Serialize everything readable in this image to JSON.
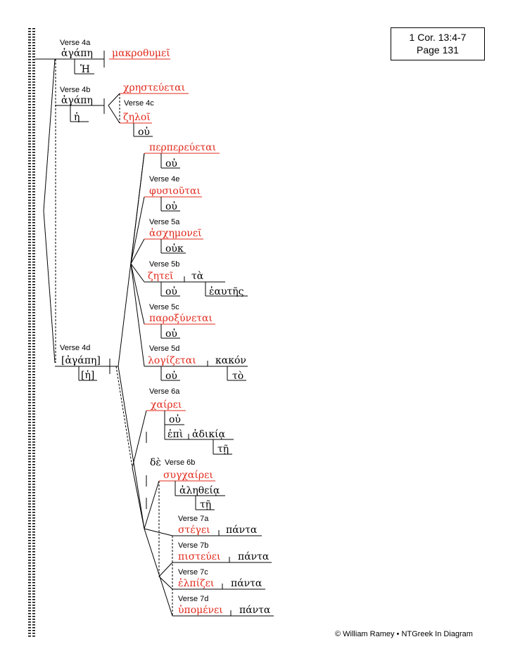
{
  "reference": {
    "line1": "1 Cor. 13:4-7",
    "line2": "Page 131"
  },
  "copyright": "© William Ramey • NTGreek In Diagram",
  "verses": {
    "v4a": "Verse 4a",
    "v4b": "Verse 4b",
    "v4c": "Verse 4c",
    "v4d": "Verse 4d",
    "v4e": "Verse 4e",
    "v5a": "Verse 5a",
    "v5b": "Verse 5b",
    "v5c": "Verse 5c",
    "v5d": "Verse 5d",
    "v6a": "Verse 6a",
    "v6b": "Verse 6b",
    "v7a": "Verse 7a",
    "v7b": "Verse 7b",
    "v7c": "Verse 7c",
    "v7d": "Verse 7d"
  },
  "words": {
    "agape1": "ἀγάπη",
    "makrothumei": "μακροθυμεῖ",
    "he1": "Ἡ",
    "agape2": "ἀγάπη",
    "he2": "ἡ",
    "chresteuetai": "χρηστεύεται",
    "zeloi": "ζηλοῖ",
    "ou1": "οὐ",
    "perpereuetai": "περπερεύεται",
    "ou2": "οὐ",
    "phusioutai": "φυσιοῦται",
    "ou3": "οὐ",
    "aschemonei": "ἀσχημονεῖ",
    "ouk": "οὐκ",
    "zetei": "ζητεῖ",
    "ta": "τὰ",
    "ou4": "οὐ",
    "heautes": "ἑαυτῆς",
    "paroxunetai": "παροξύνεται",
    "ou5": "οὐ",
    "logizetai": "λογίζεται",
    "kakon": "κακόν",
    "ou6": "οὐ",
    "to": "τὸ",
    "agape3": "[ἀγάπη]",
    "he3": "[ἡ]",
    "chairei": "χαίρει",
    "ou7": "οὐ",
    "epi": "ἐπὶ",
    "adikia": "ἀδικίᾳ",
    "te1": "τῇ",
    "de": "δὲ",
    "sugchairei": "συγχαίρει",
    "aletheia": "ἀληθείᾳ",
    "te2": "τῇ",
    "stegei": "στέγει",
    "panta1": "πάντα",
    "pisteuei": "πιστεύει",
    "panta2": "πάντα",
    "elpizei": "ἐλπίζει",
    "panta3": "πάντα",
    "hupomenei": "ὑπομένει",
    "panta4": "πάντα"
  },
  "colors": {
    "verb": "#e0281a",
    "text": "#000000"
  }
}
